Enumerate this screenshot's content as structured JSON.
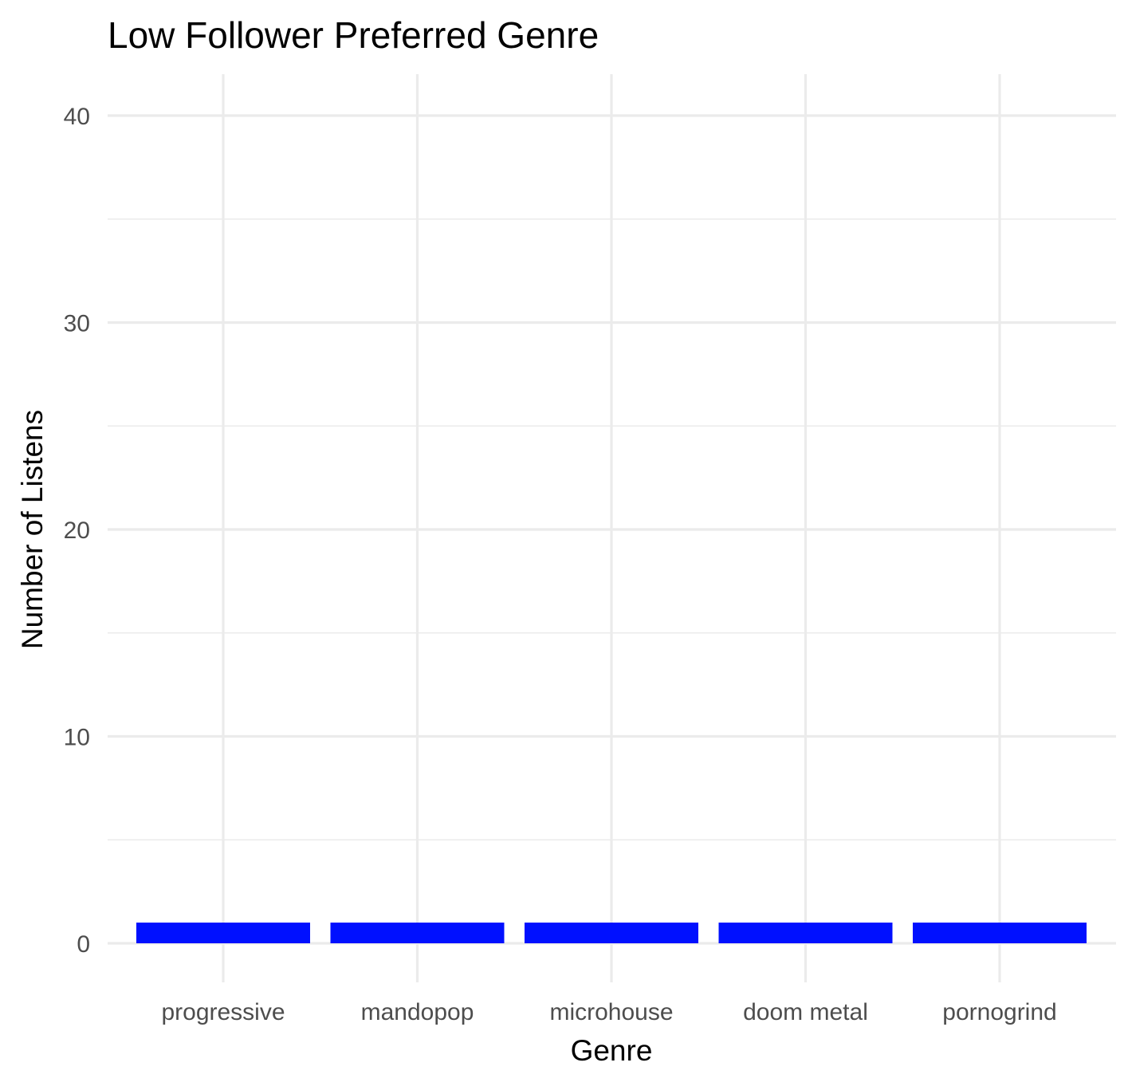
{
  "chart_data": {
    "type": "bar",
    "title": "Low Follower Preferred Genre",
    "xlabel": "Genre",
    "ylabel": "Number of Listens",
    "categories": [
      "progressive",
      "mandopop",
      "microhouse",
      "doom metal",
      "pornogrind"
    ],
    "values": [
      1,
      1,
      1,
      1,
      1
    ],
    "ylim": [
      0,
      40
    ],
    "yticks": [
      "0",
      "10",
      "20",
      "30",
      "40"
    ],
    "grid": true,
    "legend": "none",
    "colors": {
      "bar": "#0010ff",
      "grid": "#ebebeb",
      "tick_text": "#4d4d4d",
      "text": "#000000"
    }
  }
}
